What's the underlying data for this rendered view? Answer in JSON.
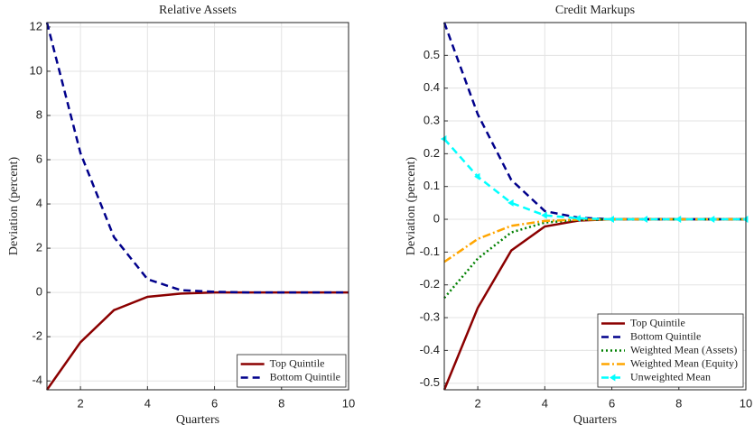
{
  "chart_data": [
    {
      "type": "line",
      "title": "Relative Assets",
      "xlabel": "Quarters",
      "ylabel": "Deviation (percent)",
      "x": [
        1,
        2,
        3,
        4,
        5,
        6,
        7,
        8,
        9,
        10
      ],
      "series": [
        {
          "name": "Top Quintile",
          "color": "#8b0000",
          "style": "solid",
          "values": [
            -4.4,
            -2.25,
            -0.8,
            -0.2,
            -0.05,
            0,
            0,
            0,
            0,
            0
          ]
        },
        {
          "name": "Bottom Quintile",
          "color": "#00008b",
          "style": "dashed",
          "values": [
            12.2,
            6.3,
            2.5,
            0.6,
            0.1,
            0.03,
            0,
            0,
            0,
            0
          ]
        }
      ],
      "xlim": [
        1,
        10
      ],
      "xticks": [
        2,
        4,
        6,
        8,
        10
      ],
      "ylim": [
        -4.4,
        12.2
      ],
      "yticks": [
        -4,
        -2,
        0,
        2,
        4,
        6,
        8,
        10,
        12
      ],
      "grid": true,
      "legend": "lower-right"
    },
    {
      "type": "line",
      "title": "Credit Markups",
      "xlabel": "Quarters",
      "ylabel": "Deviation (percent)",
      "x": [
        1,
        2,
        3,
        4,
        5,
        6,
        7,
        8,
        9,
        10
      ],
      "series": [
        {
          "name": "Top Quintile",
          "color": "#8b0000",
          "style": "solid",
          "values": [
            -0.52,
            -0.27,
            -0.095,
            -0.022,
            -0.004,
            0,
            0,
            0,
            0,
            0
          ]
        },
        {
          "name": "Bottom Quintile",
          "color": "#00008b",
          "style": "dashed",
          "values": [
            0.6,
            0.32,
            0.12,
            0.025,
            0.005,
            0,
            0,
            0,
            0,
            0
          ]
        },
        {
          "name": "Weighted Mean (Assets)",
          "color": "#008000",
          "style": "dotted",
          "values": [
            -0.24,
            -0.12,
            -0.04,
            -0.01,
            -0.002,
            0,
            0,
            0,
            0,
            0
          ]
        },
        {
          "name": "Weighted Mean (Equity)",
          "color": "#ffa500",
          "style": "dashdot",
          "values": [
            -0.13,
            -0.06,
            -0.02,
            -0.005,
            -0.001,
            0,
            0,
            0,
            0,
            0
          ]
        },
        {
          "name": "Unweighted Mean",
          "color": "#00ffff",
          "style": "dashed",
          "marker": "triangle",
          "values": [
            0.245,
            0.13,
            0.05,
            0.012,
            0.003,
            0,
            0,
            0,
            0,
            0
          ]
        }
      ],
      "xlim": [
        1,
        10
      ],
      "xticks": [
        2,
        4,
        6,
        8,
        10
      ],
      "ylim": [
        -0.52,
        0.6
      ],
      "yticks": [
        -0.5,
        -0.4,
        -0.3,
        -0.2,
        -0.1,
        0,
        0.1,
        0.2,
        0.3,
        0.4,
        0.5
      ],
      "grid": true,
      "legend": "lower-right"
    }
  ]
}
